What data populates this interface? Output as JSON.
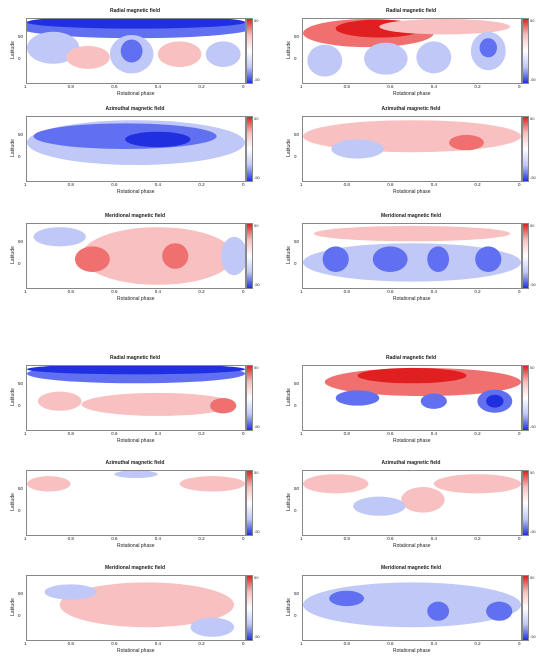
{
  "labels": {
    "latitude": "Latitude",
    "phase": "Rotational phase",
    "x_ticks": [
      "1",
      "0.8",
      "0.6",
      "0.4",
      "0.2",
      "0"
    ],
    "y_ticks": [
      "50",
      "0"
    ],
    "cbar_ticks_top": "50",
    "cbar_ticks_bottom": "-50"
  },
  "panels": [
    {
      "id": "g1-radial-left",
      "title": "Radial magnetic field"
    },
    {
      "id": "g1-radial-right",
      "title": "Radial magnetic field"
    },
    {
      "id": "g1-azimuthal-left",
      "title": "Azimuthal magnetic field"
    },
    {
      "id": "g1-azimuthal-right",
      "title": "Azimuthal magnetic field"
    },
    {
      "id": "g1-meridional-left",
      "title": "Meridional magnetic field"
    },
    {
      "id": "g1-meridional-right",
      "title": "Meridional magnetic field"
    },
    {
      "id": "g2-radial-left",
      "title": "Radial magnetic field"
    },
    {
      "id": "g2-radial-right",
      "title": "Radial magnetic field"
    },
    {
      "id": "g2-azimuthal-left",
      "title": "Azimuthal magnetic field"
    },
    {
      "id": "g2-azimuthal-right",
      "title": "Azimuthal magnetic field"
    },
    {
      "id": "g2-meridional-left",
      "title": "Meridional magnetic field"
    },
    {
      "id": "g2-meridional-right",
      "title": "Meridional magnetic field"
    }
  ],
  "colors": {
    "pos_strong": "#e02020",
    "pos_mid": "#f07070",
    "pos_light": "#f8c0c0",
    "neg_strong": "#2030e0",
    "neg_mid": "#6070f0",
    "neg_light": "#c0c8f8"
  }
}
